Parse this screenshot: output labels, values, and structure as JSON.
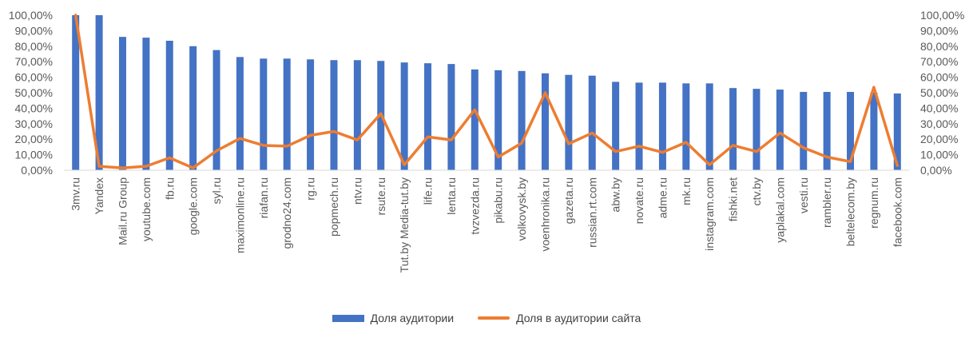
{
  "chart_data": {
    "type": "bar",
    "categories": [
      "3mv.ru",
      "Yandex",
      "Mail.ru Group",
      "youtube.com",
      "fb.ru",
      "google.com",
      "syl.ru",
      "maximonline.ru",
      "riafan.ru",
      "grodno24.com",
      "rg.ru",
      "popmech.ru",
      "ntv.ru",
      "rsute.ru",
      "Tut.by Media-tut.by",
      "life.ru",
      "lenta.ru",
      "tvzvezda.ru",
      "pikabu.ru",
      "volkovysk.by",
      "voenhronika.ru",
      "gazeta.ru",
      "russian.rt.com",
      "abw.by",
      "novate.ru",
      "adme.ru",
      "mk.ru",
      "instagram.com",
      "fishki.net",
      "ctv.by",
      "yaplakal.com",
      "vesti.ru",
      "rambler.ru",
      "beltelecom.by",
      "regnum.ru",
      "facebook.com"
    ],
    "series": [
      {
        "name": "Доля аудитории",
        "kind": "bar",
        "color": "#4472C4",
        "values": [
          100,
          100,
          86,
          85.5,
          83.5,
          80,
          77.5,
          73,
          72,
          72,
          71.5,
          71,
          71,
          70.5,
          69.5,
          69,
          68.5,
          65,
          64.5,
          64,
          62.5,
          61.5,
          61,
          57,
          56.5,
          56.5,
          56,
          56,
          53,
          52.5,
          52,
          50.5,
          50.5,
          50.5,
          50,
          49.5
        ]
      },
      {
        "name": "Доля в аудитории сайта",
        "kind": "line",
        "color": "#ED7D31",
        "values": [
          100,
          2.5,
          1.5,
          2.5,
          8,
          1.5,
          12.5,
          20.5,
          16,
          15.5,
          22.5,
          25,
          19.5,
          36.5,
          3.5,
          21.5,
          19.5,
          39,
          8.5,
          17.5,
          50,
          17,
          24,
          12,
          15.5,
          11.5,
          18,
          3.5,
          16,
          12,
          24,
          14.5,
          8.5,
          5.5,
          53.5,
          3
        ]
      }
    ],
    "ylim": [
      0,
      100
    ],
    "y_ticks": [
      "0,00%",
      "10,00%",
      "20,00%",
      "30,00%",
      "40,00%",
      "50,00%",
      "60,00%",
      "70,00%",
      "80,00%",
      "90,00%",
      "100,00%"
    ],
    "secondary_axis": true,
    "grid": false,
    "legend_position": "bottom"
  }
}
